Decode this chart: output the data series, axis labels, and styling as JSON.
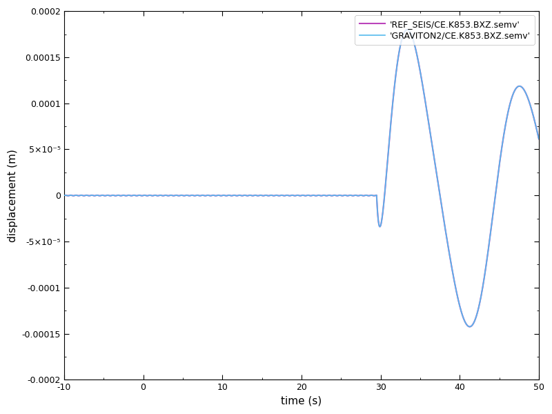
{
  "title": "",
  "xlabel": "time (s)",
  "ylabel": "displacement (m)",
  "xlim": [
    -10,
    50
  ],
  "ylim": [
    -0.0002,
    0.0002
  ],
  "legend_entries": [
    "'REF_SEIS/CE.K853.BXZ.semv'",
    "'GRAVITON2/CE.K853.BXZ.semv'"
  ],
  "ref_color": "#bb44bb",
  "graviton_color": "#55bbee",
  "background_color": "#ffffff",
  "figsize": [
    8.0,
    6.0
  ],
  "dpi": 100,
  "yticks": [
    -0.0002,
    -0.00015,
    -0.0001,
    -5e-05,
    0,
    5e-05,
    0.0001,
    0.00015,
    0.0002
  ],
  "yticklabels": [
    "-0.0002",
    "-0.00015",
    "-0.0001",
    "-5×10⁻⁵",
    "0",
    "5×10⁻⁵",
    "0.0001",
    "0.00015",
    "0.0002"
  ],
  "xticks": [
    -10,
    0,
    10,
    20,
    30,
    40,
    50
  ]
}
